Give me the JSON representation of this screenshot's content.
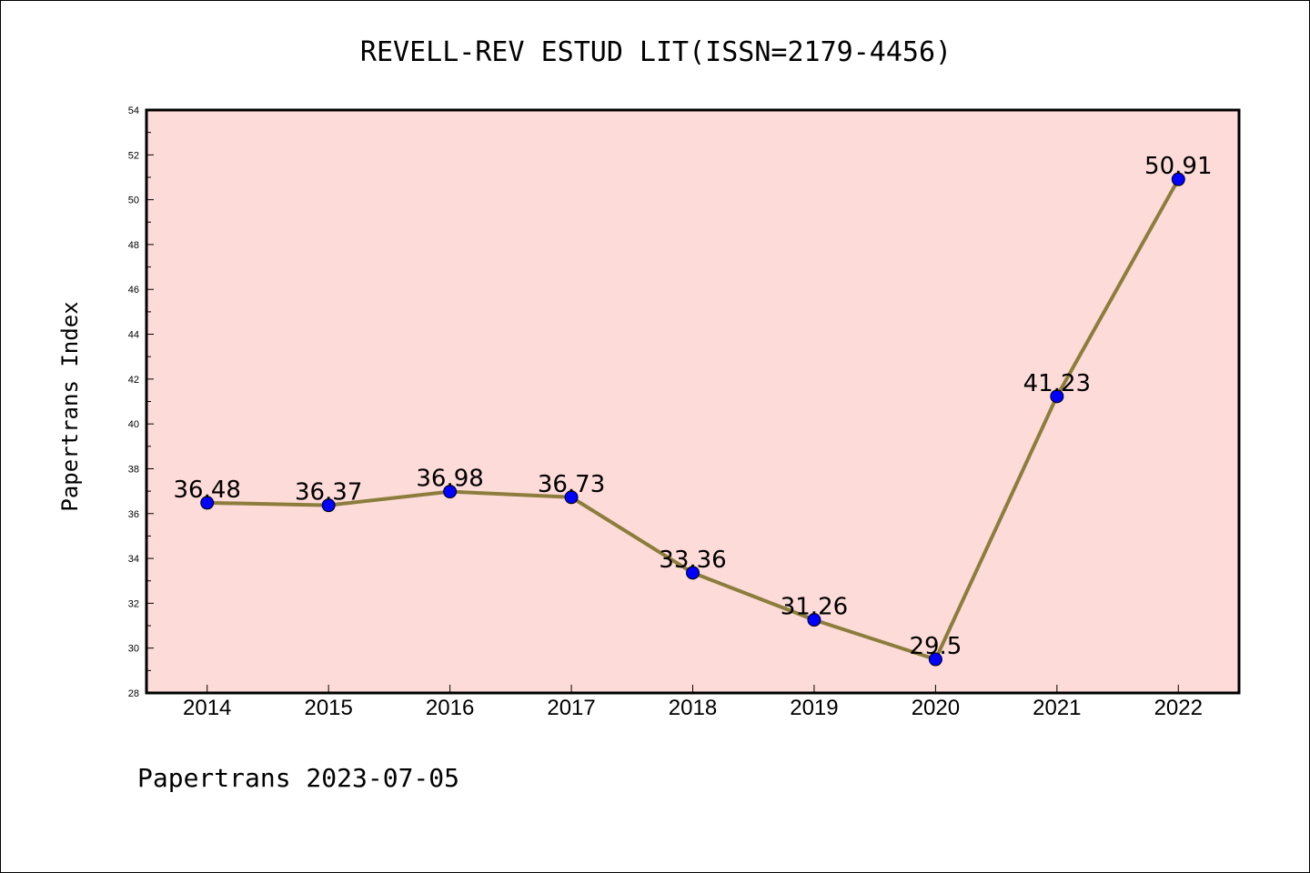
{
  "chart_data": {
    "type": "line",
    "title": "REVELL-REV ESTUD LIT(ISSN=2179-4456)",
    "xlabel": "",
    "ylabel": "Papertrans Index",
    "categories": [
      "2014",
      "2015",
      "2016",
      "2017",
      "2018",
      "2019",
      "2020",
      "2021",
      "2022"
    ],
    "series": [
      {
        "values": [
          36.48,
          36.37,
          36.98,
          36.73,
          33.36,
          31.26,
          29.5,
          41.23,
          50.91
        ],
        "labels": [
          "36.48",
          "36.37",
          "36.98",
          "36.73",
          "33.36",
          "31.26",
          "29.5",
          "41.23",
          "50.91"
        ]
      }
    ],
    "ylim": [
      28,
      54
    ],
    "yticks": [
      "28",
      "30",
      "32",
      "34",
      "36",
      "38",
      "40",
      "42",
      "44",
      "46",
      "48",
      "50",
      "52",
      "54"
    ],
    "grid": false,
    "colors": {
      "plot_background": "#fddbd8",
      "line": "#8c7d3c",
      "marker": "#0000ff"
    }
  },
  "footer": "Papertrans 2023-07-05"
}
